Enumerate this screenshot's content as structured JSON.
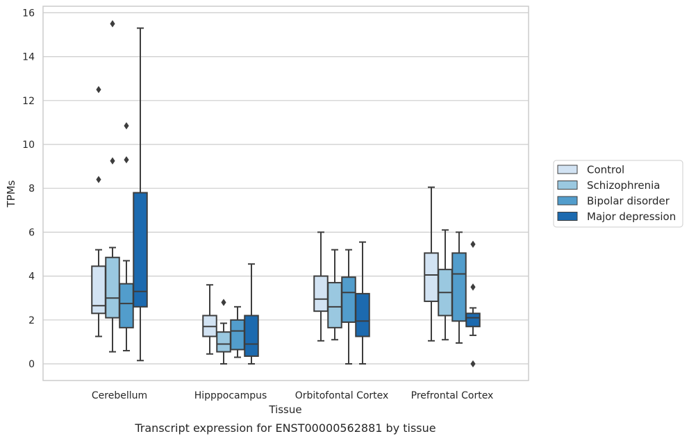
{
  "caption": "Transcript expression for ENST00000562881 by tissue",
  "chart_data": {
    "type": "box",
    "title": "",
    "xlabel": "Tissue",
    "ylabel": "TPMs",
    "ylim": [
      -0.75,
      16.3
    ],
    "yticks": [
      0,
      2,
      4,
      6,
      8,
      10,
      12,
      14,
      16
    ],
    "grid": true,
    "legend_position": "right",
    "categories": [
      "Cerebellum",
      "Hipppocampus",
      "Orbitofontal Cortex",
      "Prefrontal Cortex"
    ],
    "series": [
      {
        "name": "Control",
        "color": "#d2e3f3",
        "boxes": [
          {
            "whisker_low": 1.25,
            "q1": 2.3,
            "median": 2.65,
            "q3": 4.45,
            "whisker_high": 5.2,
            "outliers": [
              8.4,
              12.5
            ]
          },
          {
            "whisker_low": 0.45,
            "q1": 1.25,
            "median": 1.7,
            "q3": 2.2,
            "whisker_high": 3.6,
            "outliers": []
          },
          {
            "whisker_low": 1.05,
            "q1": 2.4,
            "median": 2.95,
            "q3": 4.0,
            "whisker_high": 6.0,
            "outliers": []
          },
          {
            "whisker_low": 1.05,
            "q1": 2.85,
            "median": 4.05,
            "q3": 5.05,
            "whisker_high": 8.05,
            "outliers": []
          }
        ]
      },
      {
        "name": "Schizophrenia",
        "color": "#9ac8e0",
        "boxes": [
          {
            "whisker_low": 0.55,
            "q1": 2.1,
            "median": 3.0,
            "q3": 4.85,
            "whisker_high": 5.3,
            "outliers": [
              9.25,
              15.5
            ]
          },
          {
            "whisker_low": 0.0,
            "q1": 0.55,
            "median": 0.9,
            "q3": 1.45,
            "whisker_high": 1.85,
            "outliers": [
              2.8
            ]
          },
          {
            "whisker_low": 1.1,
            "q1": 1.65,
            "median": 2.6,
            "q3": 3.7,
            "whisker_high": 5.2,
            "outliers": []
          },
          {
            "whisker_low": 1.1,
            "q1": 2.2,
            "median": 3.25,
            "q3": 4.3,
            "whisker_high": 6.1,
            "outliers": []
          }
        ]
      },
      {
        "name": "Bipolar disorder",
        "color": "#529dcc",
        "boxes": [
          {
            "whisker_low": 0.6,
            "q1": 1.65,
            "median": 2.75,
            "q3": 3.65,
            "whisker_high": 4.7,
            "outliers": [
              9.3,
              10.85
            ]
          },
          {
            "whisker_low": 0.3,
            "q1": 0.65,
            "median": 1.5,
            "q3": 2.0,
            "whisker_high": 2.6,
            "outliers": []
          },
          {
            "whisker_low": 0.0,
            "q1": 1.9,
            "median": 3.25,
            "q3": 3.95,
            "whisker_high": 5.2,
            "outliers": []
          },
          {
            "whisker_low": 0.95,
            "q1": 1.95,
            "median": 4.1,
            "q3": 5.05,
            "whisker_high": 6.0,
            "outliers": []
          }
        ]
      },
      {
        "name": "Major depression",
        "color": "#1c6aaf",
        "boxes": [
          {
            "whisker_low": 0.15,
            "q1": 2.6,
            "median": 3.3,
            "q3": 7.8,
            "whisker_high": 15.3,
            "outliers": []
          },
          {
            "whisker_low": 0.0,
            "q1": 0.35,
            "median": 0.9,
            "q3": 2.2,
            "whisker_high": 4.55,
            "outliers": []
          },
          {
            "whisker_low": 0.0,
            "q1": 1.25,
            "median": 1.95,
            "q3": 3.2,
            "whisker_high": 5.55,
            "outliers": []
          },
          {
            "whisker_low": 1.3,
            "q1": 1.7,
            "median": 2.1,
            "q3": 2.3,
            "whisker_high": 2.55,
            "outliers": [
              0.0,
              3.5,
              5.45
            ]
          }
        ]
      }
    ]
  }
}
